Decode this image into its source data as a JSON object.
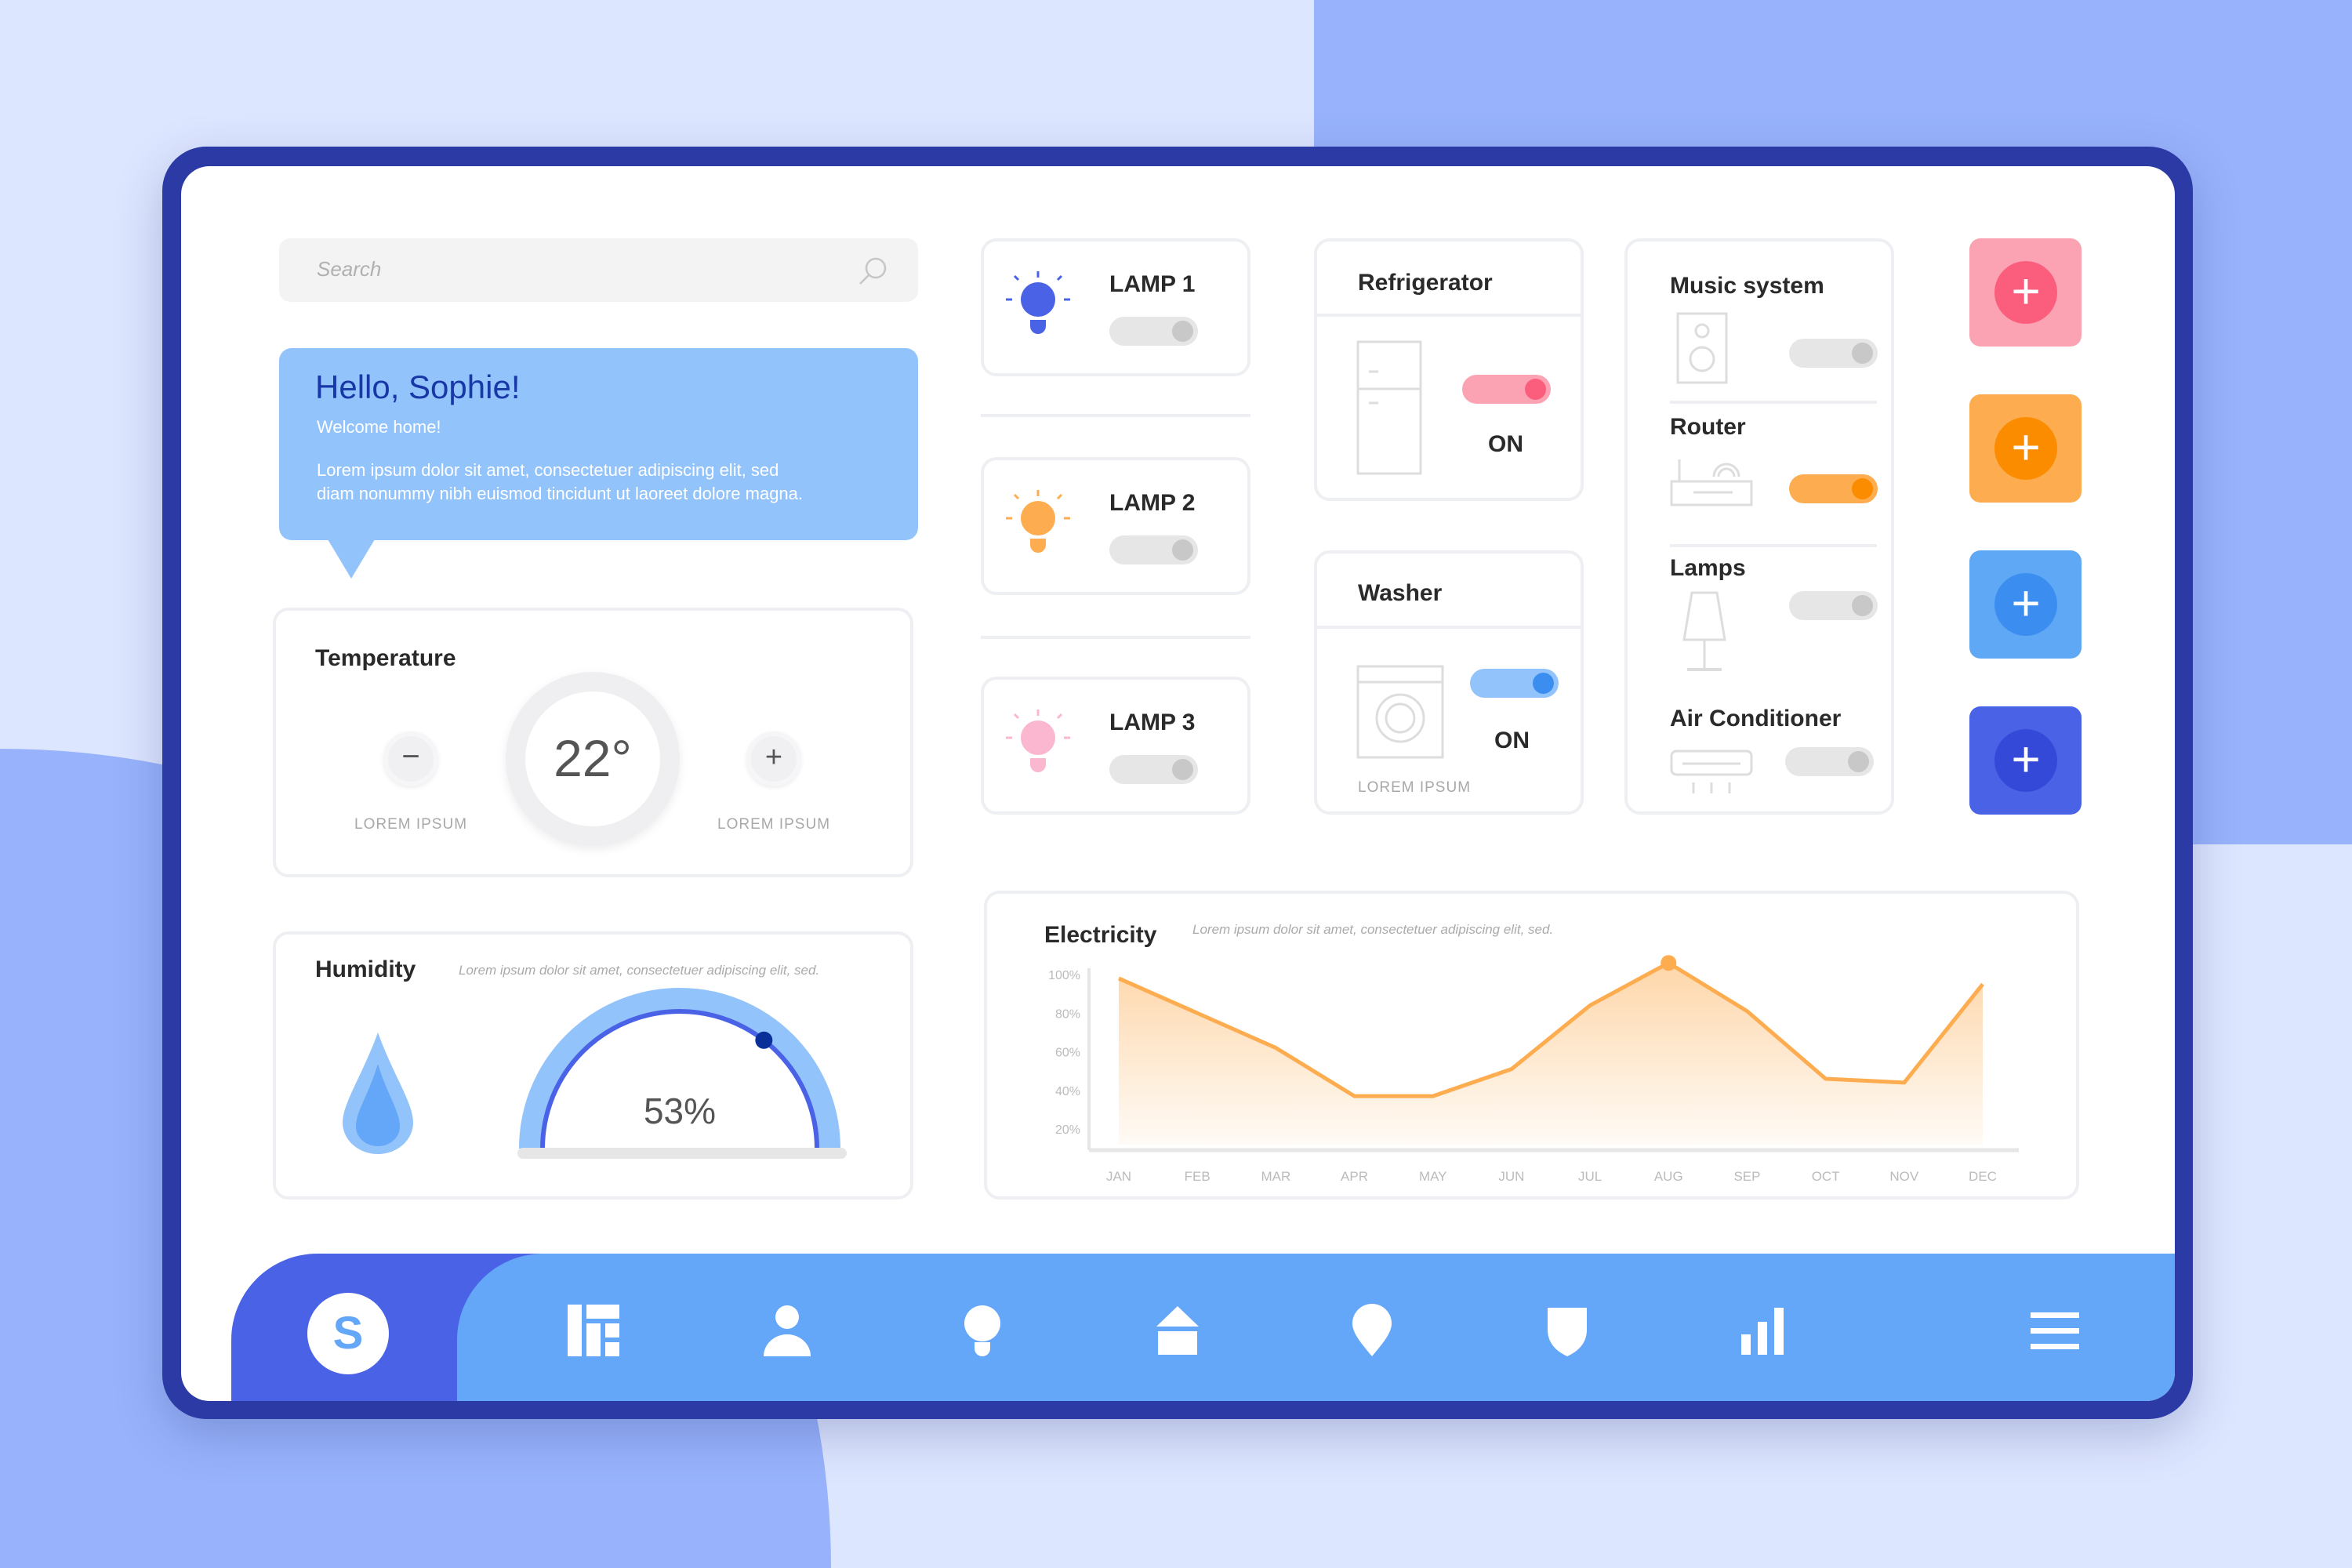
{
  "search": {
    "placeholder": "Search",
    "icon": "search-icon"
  },
  "greeting": {
    "title": "Hello, Sophie!",
    "subtitle": "Welcome home!",
    "body_line1": "Lorem ipsum dolor sit amet, consectetuer adipiscing elit, sed",
    "body_line2": "diam nonummy nibh euismod tincidunt ut laoreet dolore magna."
  },
  "temperature": {
    "title": "Temperature",
    "value": "22°",
    "decrease_label": "LOREM IPSUM",
    "increase_label": "LOREM IPSUM"
  },
  "humidity": {
    "title": "Humidity",
    "description": "Lorem ipsum dolor sit amet, consectetuer adipiscing elit, sed.",
    "value": "53%",
    "level_percent": 53
  },
  "lamps": [
    {
      "label": "LAMP 1",
      "on": false,
      "color": "#4a63e6"
    },
    {
      "label": "LAMP 2",
      "on": false,
      "color": "#fdac4f"
    },
    {
      "label": "LAMP 3",
      "on": false,
      "color": "#fbb6d0"
    }
  ],
  "refrigerator": {
    "title": "Refrigerator",
    "state": "ON",
    "on": true
  },
  "washer": {
    "title": "Washer",
    "state": "ON",
    "on": true,
    "caption": "LOREM IPSUM"
  },
  "devices": [
    {
      "label": "Music system",
      "on": false
    },
    {
      "label": "Router",
      "on": true
    },
    {
      "label": "Lamps",
      "on": false
    },
    {
      "label": "Air Conditioner",
      "on": false
    }
  ],
  "add_buttons": [
    {
      "color": "#fba3b3"
    },
    {
      "color": "#fdac4f"
    },
    {
      "color": "#5fa8f5"
    },
    {
      "color": "#4a63e6"
    }
  ],
  "electricity": {
    "title": "Electricity",
    "description": "Lorem ipsum dolor sit amet, consectetuer adipiscing elit, sed."
  },
  "chart_data": {
    "type": "area",
    "categories": [
      "JAN",
      "FEB",
      "MAR",
      "APR",
      "MAY",
      "JUN",
      "JUL",
      "AUG",
      "SEP",
      "OCT",
      "NOV",
      "DEC"
    ],
    "values": [
      98,
      80,
      62,
      37,
      37,
      51,
      84,
      106,
      81,
      46,
      44,
      95
    ],
    "yticks": [
      "100%",
      "80%",
      "60%",
      "40%",
      "20%"
    ],
    "ytick_values": [
      100,
      80,
      60,
      40,
      20
    ],
    "highlight": "AUG",
    "color": "#fdac4f",
    "grid": false
  },
  "nav": {
    "avatar_letter": "S",
    "items": [
      "dashboard-icon",
      "user-icon",
      "bulb-icon",
      "home-icon",
      "location-icon",
      "shield-icon",
      "stats-icon",
      "menu-icon"
    ]
  }
}
